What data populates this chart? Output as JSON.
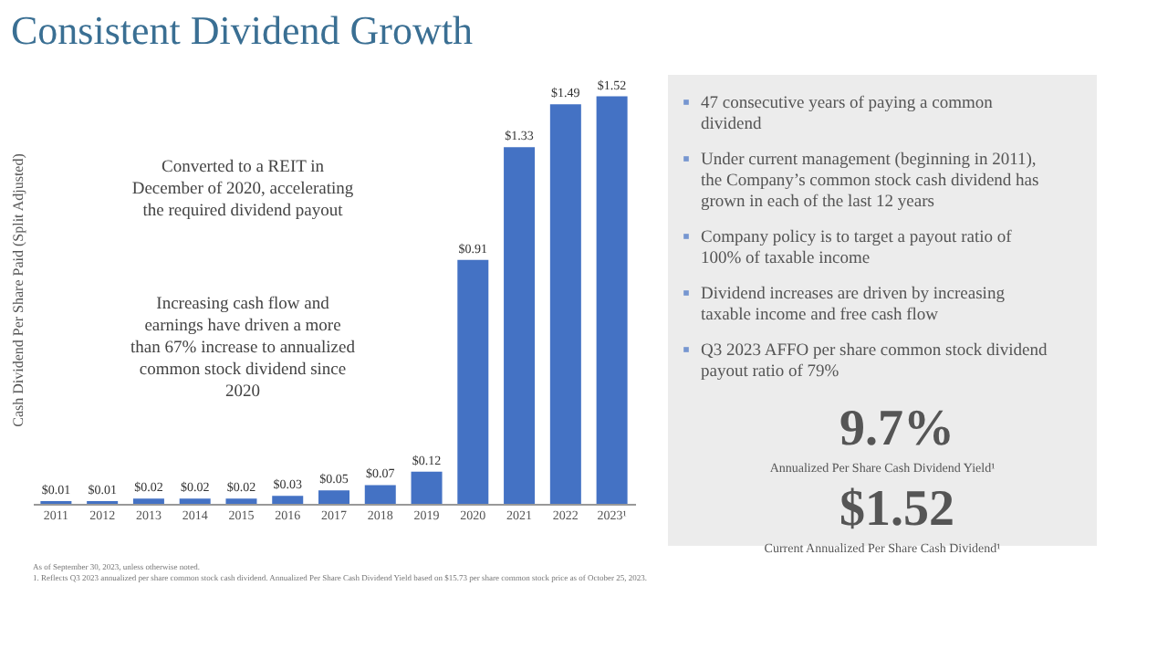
{
  "chart_data": {
    "type": "bar",
    "title": "Consistent Dividend Growth",
    "ylabel": "Cash Dividend Per Share Paid (Split Adjusted)",
    "categories": [
      "2011",
      "2012",
      "2013",
      "2014",
      "2015",
      "2016",
      "2017",
      "2018",
      "2019",
      "2020",
      "2021",
      "2022",
      "2023¹"
    ],
    "values": [
      0.01,
      0.01,
      0.02,
      0.02,
      0.02,
      0.03,
      0.05,
      0.07,
      0.12,
      0.91,
      1.33,
      1.49,
      1.52
    ],
    "value_labels": [
      "$0.01",
      "$0.01",
      "$0.02",
      "$0.02",
      "$0.02",
      "$0.03",
      "$0.05",
      "$0.07",
      "$0.12",
      "$0.91",
      "$1.33",
      "$1.49",
      "$1.52"
    ],
    "color": "#4472c4",
    "annotations": [
      "Converted to a REIT in December of 2020, accelerating the required dividend payout",
      "Increasing cash flow and earnings have driven a more than 67% increase to annualized common stock dividend since 2020",
      "47 consecutive years of paying a common dividend",
      "Under current management (beginning in 2011), the Company’s common stock cash dividend has grown in each of the last 12 years",
      "Company policy is to target a payout ratio of 100% of taxable income",
      "Dividend increases are driven by increasing taxable income and free cash flow",
      "Q3 2023 AFFO per share common stock dividend payout ratio of 79%",
      "9.7%",
      "Annualized Per Share Cash Dividend Yield¹",
      "$1.52",
      "Current Annualized Per Share Cash Dividend¹",
      "As of September 30, 2023, unless otherwise noted.",
      "1.  Reflects Q3 2023 annualized per share common stock cash dividend. Annualized Per Share Cash Dividend Yield based on $15.73 per share common stock price as of October 25, 2023."
    ]
  }
}
